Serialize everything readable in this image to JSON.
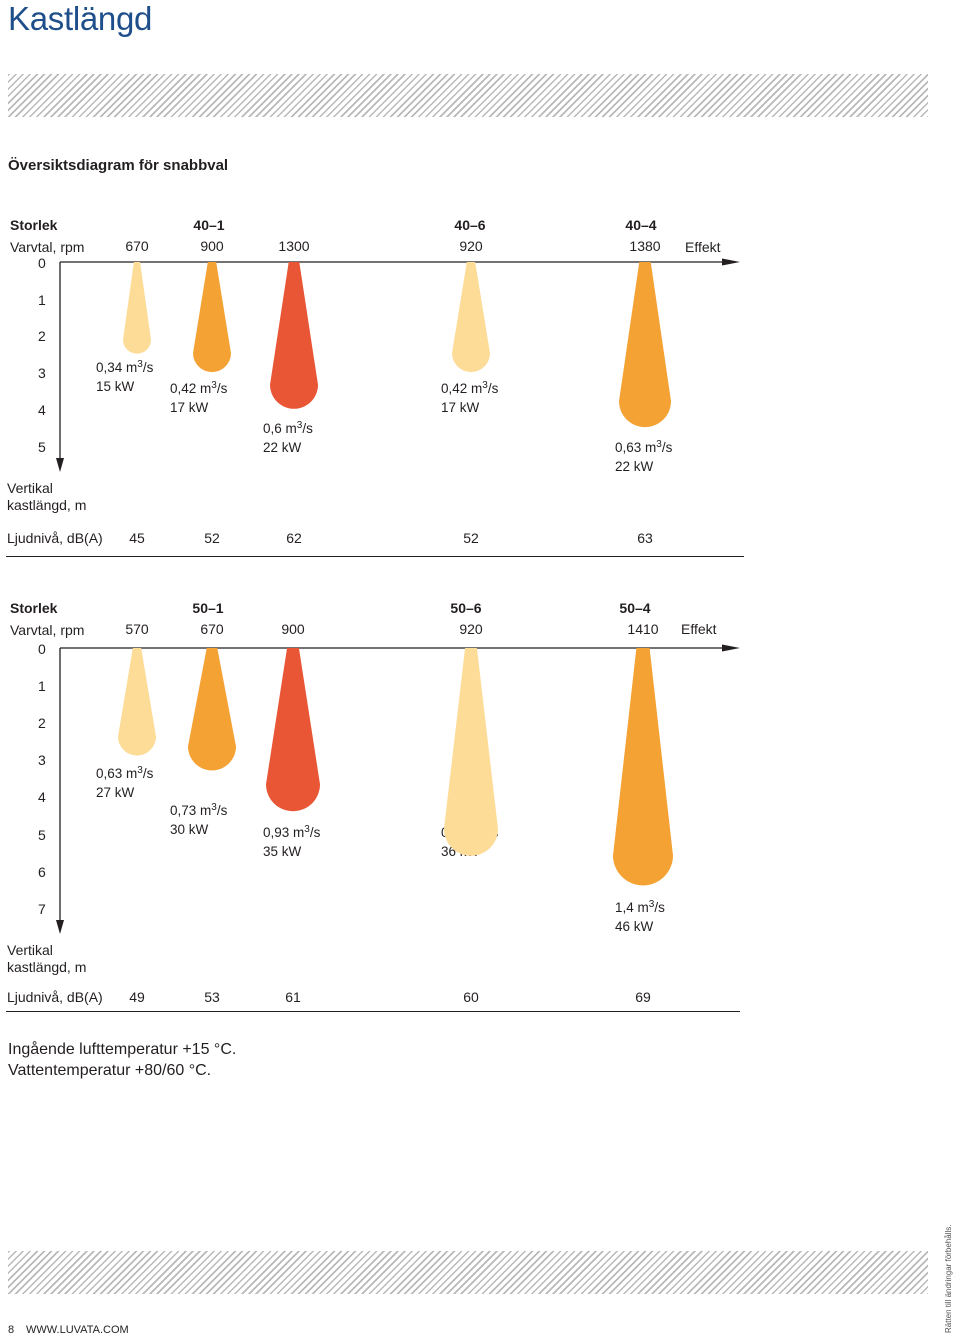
{
  "page": {
    "title": "Kastlängd",
    "subtitle": "Översiktsdiagram för snabbval",
    "notes": [
      "Ingående lufttemperatur  +15 °C.",
      "Vattentemperatur +80/60 °C."
    ],
    "footer_page": "8",
    "footer_url": "WWW.LUVATA.COM",
    "side_note": "Rätten till ändringar förbehålls."
  },
  "colors": {
    "light": "#fddc98",
    "medium": "#f4a234",
    "hot": "#e85635",
    "title": "#1f4f8a"
  },
  "chart_data": [
    {
      "type": "diagram",
      "labels": {
        "storlek": "Storlek",
        "varvtal": "Varvtal, rpm",
        "effekt": "Effekt",
        "vertical_1": "Vertikal",
        "vertical_2": "kastlängd, m",
        "ljud": "Ljudnivå, dB(A)"
      },
      "size_labels": [
        "40–1",
        "40–6",
        "40–4"
      ],
      "y_ticks": [
        "0",
        "1",
        "2",
        "3",
        "4",
        "5"
      ],
      "units": [
        {
          "rpm": "670",
          "flow": "0,34 m",
          "exp": "3",
          "flow_unit": "/s",
          "power": "15 kW",
          "throw_m": 2.5,
          "color": "light",
          "sound": "45"
        },
        {
          "rpm": "900",
          "flow": "0,42 m",
          "exp": "3",
          "flow_unit": "/s",
          "power": "17 kW",
          "throw_m": 3.0,
          "color": "medium",
          "sound": "52"
        },
        {
          "rpm": "1300",
          "flow": "0,6 m",
          "exp": "3",
          "flow_unit": "/s",
          "power": "22 kW",
          "throw_m": 4.0,
          "color": "hot",
          "sound": "62"
        },
        {
          "rpm": "920",
          "flow": "0,42 m",
          "exp": "3",
          "flow_unit": "/s",
          "power": "17 kW",
          "throw_m": 3.0,
          "color": "light",
          "sound": "52"
        },
        {
          "rpm": "1380",
          "flow": "0,63 m",
          "exp": "3",
          "flow_unit": "/s",
          "power": "22 kW",
          "throw_m": 4.5,
          "color": "medium",
          "sound": "63"
        }
      ]
    },
    {
      "type": "diagram",
      "labels": {
        "storlek": "Storlek",
        "varvtal": "Varvtal, rpm",
        "effekt": "Effekt",
        "vertical_1": "Vertikal",
        "vertical_2": "kastlängd, m",
        "ljud": "Ljudnivå, dB(A)"
      },
      "size_labels": [
        "50–1",
        "50–6",
        "50–4"
      ],
      "y_ticks": [
        "0",
        "1",
        "2",
        "3",
        "4",
        "5",
        "6",
        "7"
      ],
      "units": [
        {
          "rpm": "570",
          "flow": "0,63 m",
          "exp": "3",
          "flow_unit": "/s",
          "power": "27 kW",
          "throw_m": 2.9,
          "color": "light",
          "sound": "49"
        },
        {
          "rpm": "670",
          "flow": "0,73 m",
          "exp": "3",
          "flow_unit": "/s",
          "power": "30 kW",
          "throw_m": 3.3,
          "color": "medium",
          "sound": "53"
        },
        {
          "rpm": "900",
          "flow": "0,93 m",
          "exp": "3",
          "flow_unit": "/s",
          "power": "35 kW",
          "throw_m": 4.4,
          "color": "hot",
          "sound": "61"
        },
        {
          "rpm": "920",
          "flow": "0,94 m",
          "exp": "3",
          "flow_unit": "/s",
          "power": "36 kW",
          "throw_m": 5.6,
          "color": "light",
          "sound": "60"
        },
        {
          "rpm": "1410",
          "flow": "1,4 m",
          "exp": "3",
          "flow_unit": "/s",
          "power": "46 kW",
          "throw_m": 6.4,
          "color": "medium",
          "sound": "69"
        }
      ]
    }
  ]
}
